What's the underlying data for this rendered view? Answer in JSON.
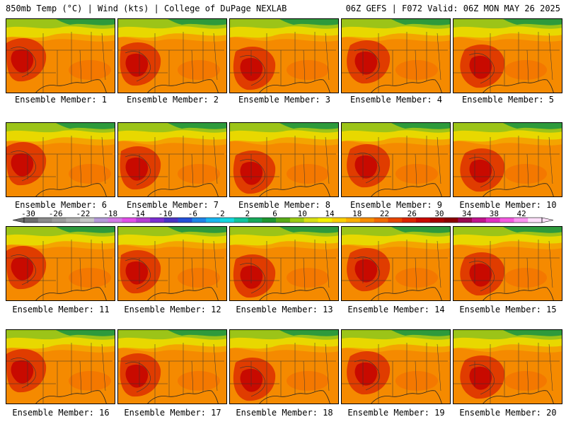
{
  "header": {
    "left": "850mb Temp (°C) | Wind (kts) | College of DuPage NEXLAB",
    "right": "06Z GEFS | F072 Valid: 06Z MON MAY 26 2025"
  },
  "panels": [
    {
      "label": "Ensemble Member: 1"
    },
    {
      "label": "Ensemble Member: 2"
    },
    {
      "label": "Ensemble Member: 3"
    },
    {
      "label": "Ensemble Member: 4"
    },
    {
      "label": "Ensemble Member: 5"
    },
    {
      "label": "Ensemble Member: 6"
    },
    {
      "label": "Ensemble Member: 7"
    },
    {
      "label": "Ensemble Member: 8"
    },
    {
      "label": "Ensemble Member: 9"
    },
    {
      "label": "Ensemble Member: 10"
    },
    {
      "label": "Ensemble Member: 11"
    },
    {
      "label": "Ensemble Member: 12"
    },
    {
      "label": "Ensemble Member: 13"
    },
    {
      "label": "Ensemble Member: 14"
    },
    {
      "label": "Ensemble Member: 15"
    },
    {
      "label": "Ensemble Member: 16"
    },
    {
      "label": "Ensemble Member: 17"
    },
    {
      "label": "Ensemble Member: 18"
    },
    {
      "label": "Ensemble Member: 19"
    },
    {
      "label": "Ensemble Member: 20"
    }
  ],
  "colorbar": {
    "ticks": [
      "-30",
      "-26",
      "-22",
      "-18",
      "-14",
      "-10",
      "-6",
      "-2",
      "2",
      "6",
      "10",
      "14",
      "18",
      "22",
      "26",
      "30",
      "34",
      "38",
      "42"
    ],
    "colors": [
      "#6e6e6e",
      "#8a8a8a",
      "#9c9c9c",
      "#b0b0b0",
      "#c6c6c6",
      "#b49ad8",
      "#d27ae6",
      "#e04fe8",
      "#b43ed2",
      "#7b2fd0",
      "#4a33c6",
      "#2450d8",
      "#1e84e8",
      "#18b6f0",
      "#14d8e0",
      "#12c49c",
      "#17a85a",
      "#1f9630",
      "#58ab18",
      "#9ccc14",
      "#d8e012",
      "#f4f000",
      "#fcd000",
      "#fcae00",
      "#f88c00",
      "#f26a00",
      "#e84600",
      "#dc2400",
      "#c80a00",
      "#a80000",
      "#8c0000",
      "#9a0850",
      "#c0148c",
      "#e030c0",
      "#f45ae0",
      "#fa94f0",
      "#fde0fa"
    ]
  }
}
